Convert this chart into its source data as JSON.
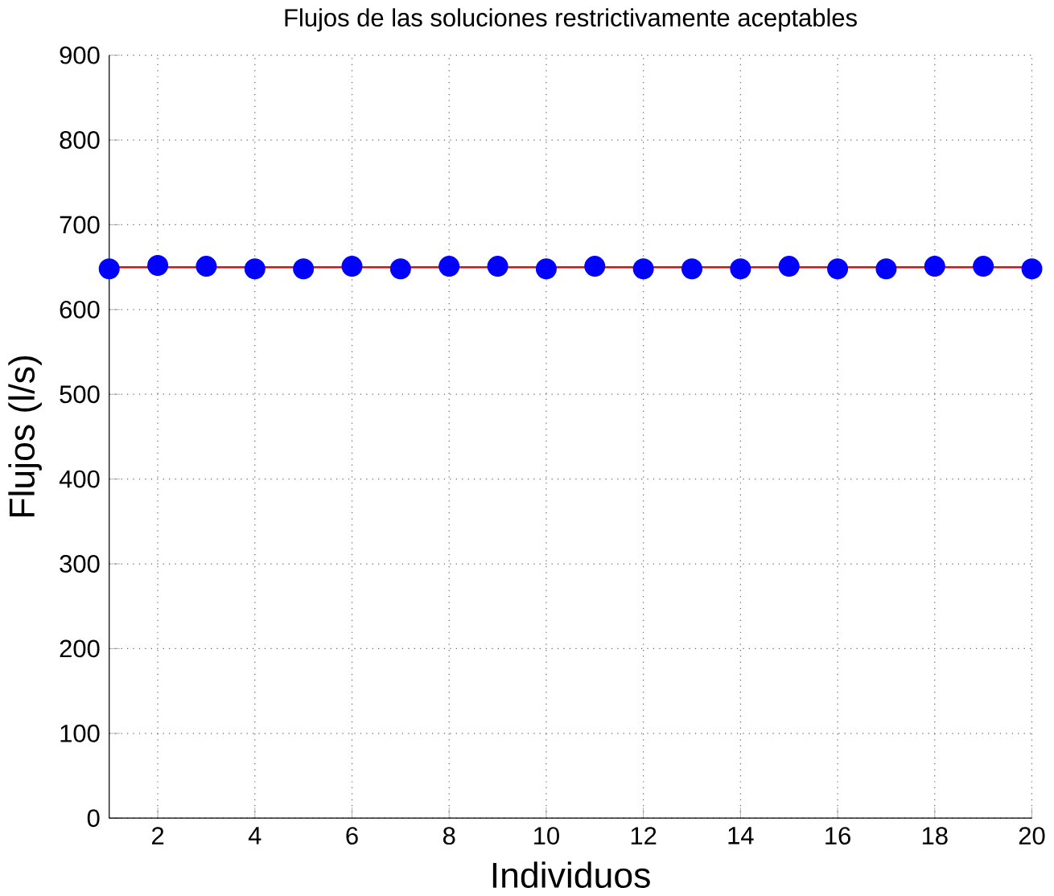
{
  "chart_data": {
    "type": "scatter",
    "title": "Flujos de las soluciones restrictivamente aceptables",
    "xlabel": "Individuos",
    "ylabel": "Flujos (l/s)",
    "x": [
      1,
      2,
      3,
      4,
      5,
      6,
      7,
      8,
      9,
      10,
      11,
      12,
      13,
      14,
      15,
      16,
      17,
      18,
      19,
      20
    ],
    "series": [
      {
        "color": "#0000ff",
        "values": [
          648,
          652,
          651,
          648,
          648,
          651,
          648,
          651,
          651,
          648,
          651,
          648,
          648,
          648,
          651,
          648,
          648,
          651,
          651,
          648
        ]
      }
    ],
    "xlim": [
      1,
      20
    ],
    "ylim": [
      0,
      900
    ],
    "xticks": [
      2,
      4,
      6,
      8,
      10,
      12,
      14,
      16,
      18,
      20
    ],
    "yticks": [
      0,
      100,
      200,
      300,
      400,
      500,
      600,
      700,
      800,
      900
    ],
    "ref_lines": [
      {
        "axis": "y",
        "value": 650,
        "color": "#ff0000"
      }
    ],
    "grid": true,
    "marker": "circle"
  }
}
